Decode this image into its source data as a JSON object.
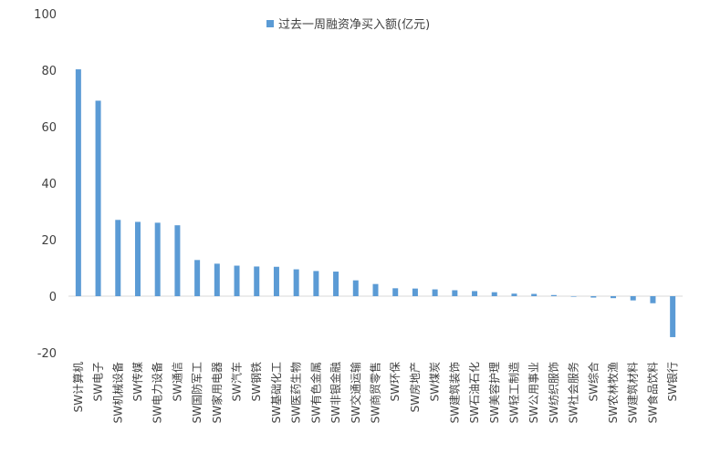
{
  "chart_data": {
    "type": "bar",
    "legend": {
      "label": "过去一周融资净买入额(亿元)",
      "position": "top",
      "color": "#5B9BD5"
    },
    "ylim": [
      -20,
      100
    ],
    "yticks": [
      -20,
      0,
      20,
      40,
      60,
      80,
      100
    ],
    "grid": false,
    "categories": [
      "SW计算机",
      "SW电子",
      "SW机械设备",
      "SW传媒",
      "SW电力设备",
      "SW通信",
      "SW国防军工",
      "SW家用电器",
      "SW汽车",
      "SW钢铁",
      "SW基础化工",
      "SW医药生物",
      "SW有色金属",
      "SW非银金融",
      "SW交通运输",
      "SW商贸零售",
      "SW环保",
      "SW房地产",
      "SW煤炭",
      "SW建筑装饰",
      "SW石油石化",
      "SW美容护理",
      "SW轻工制造",
      "SW公用事业",
      "SW纺织服饰",
      "SW社会服务",
      "SW综合",
      "SW农林牧渔",
      "SW建筑材料",
      "SW食品饮料",
      "SW银行"
    ],
    "series": [
      {
        "name": "过去一周融资净买入额(亿元)",
        "color": "#5B9BD5",
        "values": [
          80.3,
          69.2,
          27.0,
          26.3,
          26.0,
          25.1,
          12.8,
          11.5,
          10.8,
          10.5,
          10.4,
          9.5,
          8.9,
          8.7,
          5.6,
          4.3,
          2.8,
          2.7,
          2.4,
          2.1,
          1.8,
          1.4,
          0.9,
          0.8,
          0.4,
          0.0,
          -0.5,
          -0.7,
          -1.5,
          -2.5,
          -14.5
        ]
      }
    ]
  }
}
